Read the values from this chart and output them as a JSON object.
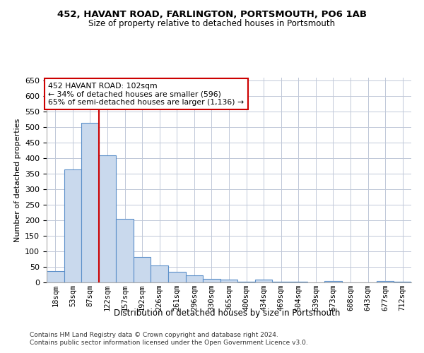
{
  "title1": "452, HAVANT ROAD, FARLINGTON, PORTSMOUTH, PO6 1AB",
  "title2": "Size of property relative to detached houses in Portsmouth",
  "xlabel": "Distribution of detached houses by size in Portsmouth",
  "ylabel": "Number of detached properties",
  "bin_labels": [
    "18sqm",
    "53sqm",
    "87sqm",
    "122sqm",
    "157sqm",
    "192sqm",
    "226sqm",
    "261sqm",
    "296sqm",
    "330sqm",
    "365sqm",
    "400sqm",
    "434sqm",
    "469sqm",
    "504sqm",
    "539sqm",
    "573sqm",
    "608sqm",
    "643sqm",
    "677sqm",
    "712sqm"
  ],
  "bar_values": [
    36,
    365,
    515,
    410,
    205,
    82,
    55,
    35,
    22,
    12,
    8,
    2,
    8,
    3,
    3,
    0,
    5,
    0,
    0,
    4,
    3
  ],
  "bar_color": "#c9d9ed",
  "bar_edge_color": "#5b8fc9",
  "property_bin_index": 2,
  "annotation_text": "452 HAVANT ROAD: 102sqm\n← 34% of detached houses are smaller (596)\n65% of semi-detached houses are larger (1,136) →",
  "annotation_box_color": "#ffffff",
  "annotation_box_edge_color": "#cc0000",
  "vline_color": "#cc0000",
  "ylim": [
    0,
    660
  ],
  "yticks": [
    0,
    50,
    100,
    150,
    200,
    250,
    300,
    350,
    400,
    450,
    500,
    550,
    600,
    650
  ],
  "footer1": "Contains HM Land Registry data © Crown copyright and database right 2024.",
  "footer2": "Contains public sector information licensed under the Open Government Licence v3.0.",
  "bg_color": "#ffffff",
  "grid_color": "#c0c8d8"
}
